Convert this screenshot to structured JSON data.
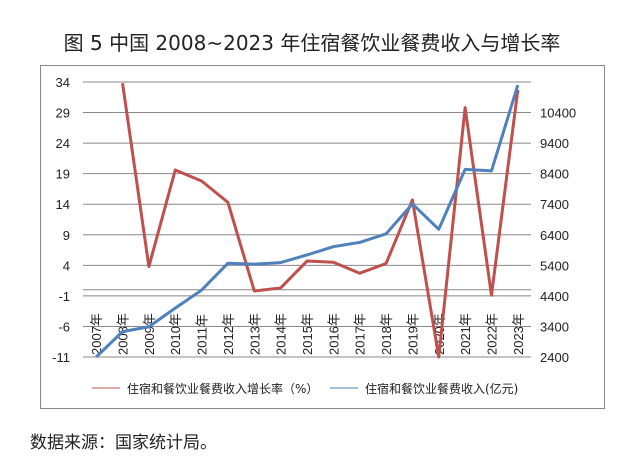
{
  "title": "图 5  中国 2008~2023 年住宿餐饮业餐费收入与增长率",
  "source": "数据来源：国家统计局。",
  "chart_data": {
    "type": "line",
    "title": "图 5  中国 2008~2023 年住宿餐饮业餐费收入与增长率",
    "categories": [
      "2007年",
      "2008年",
      "2009年",
      "2010年",
      "2011年",
      "2012年",
      "2013年",
      "2014年",
      "2015年",
      "2016年",
      "2017年",
      "2018年",
      "2019年",
      "2020年",
      "2021年",
      "2022年",
      "2023年"
    ],
    "y_left": {
      "range": [
        -11,
        34
      ],
      "ticks": [
        34,
        29,
        24,
        19,
        14,
        9,
        4,
        -1,
        -6,
        -11
      ]
    },
    "y_right": {
      "range": [
        2400,
        11400
      ],
      "ticks": [
        10400,
        9400,
        8400,
        7400,
        6400,
        5400,
        4400,
        3400,
        2400
      ]
    },
    "grid": true,
    "legend": "bottom",
    "series": [
      {
        "name": "住宿和餐饮业餐费收入增长率（%）",
        "axis": "left",
        "color": "#c0504d",
        "values": [
          null,
          33.8,
          3.8,
          19.6,
          17.8,
          14.3,
          -0.2,
          0.3,
          4.7,
          4.5,
          2.7,
          4.3,
          14.7,
          -11,
          29.8,
          -0.9,
          32.7
        ]
      },
      {
        "name": "住宿和餐饮业餐费收入(亿元)",
        "axis": "right",
        "color": "#4f81bd",
        "values": [
          2400,
          3230,
          3390,
          4000,
          4590,
          5470,
          5440,
          5490,
          5740,
          6010,
          6150,
          6430,
          7410,
          6580,
          8540,
          8490,
          11300
        ]
      }
    ]
  }
}
